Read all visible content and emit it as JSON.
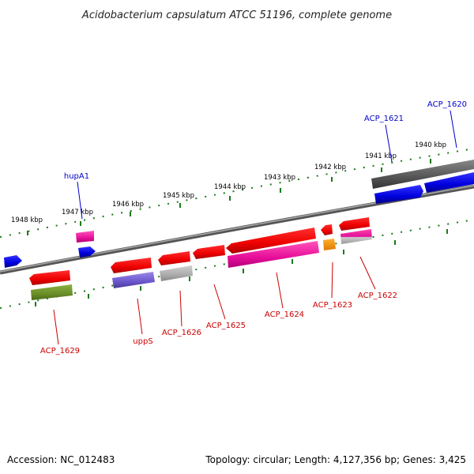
{
  "title": "Acidobacterium capsulatum ATCC 51196, complete genome",
  "footer": {
    "accession": "Accession: NC_012483",
    "topology": "Topology: circular; Length: 4,127,356 bp; Genes: 3,425"
  },
  "colors": {
    "forward_label": "#0000cc",
    "reverse_label": "#cc0000",
    "tick_green": "#1a7a1a",
    "backbone": "#777777"
  },
  "kbp_labels": [
    "1948 kbp",
    "1947 kbp",
    "1946 kbp",
    "1945 kbp",
    "1944 kbp",
    "1943 kbp",
    "1942 kbp",
    "1941 kbp",
    "1940 kbp"
  ],
  "genes": [
    {
      "name": "ACP_1620",
      "strand": "forward",
      "color": "blue",
      "pair_color": "dark-gray"
    },
    {
      "name": "ACP_1621",
      "strand": "forward",
      "color": "",
      "pair_color": ""
    },
    {
      "name": "hupA1",
      "strand": "forward",
      "color": "blue",
      "pair_color": "magenta"
    },
    {
      "name": "ACP_1622",
      "strand": "reverse",
      "color": "red",
      "pair_color": "pink-gray"
    },
    {
      "name": "ACP_1623",
      "strand": "reverse",
      "color": "red",
      "pair_color": "orange"
    },
    {
      "name": "ACP_1624",
      "strand": "reverse",
      "color": "red",
      "pair_color": "magenta"
    },
    {
      "name": "ACP_1625",
      "strand": "reverse",
      "color": "red",
      "pair_color": ""
    },
    {
      "name": "ACP_1626",
      "strand": "reverse",
      "color": "red",
      "pair_color": "light-gray"
    },
    {
      "name": "uppS",
      "strand": "reverse",
      "color": "red",
      "pair_color": "purple"
    },
    {
      "name": "ACP_1629",
      "strand": "reverse",
      "color": "red",
      "pair_color": "olive-green"
    }
  ]
}
